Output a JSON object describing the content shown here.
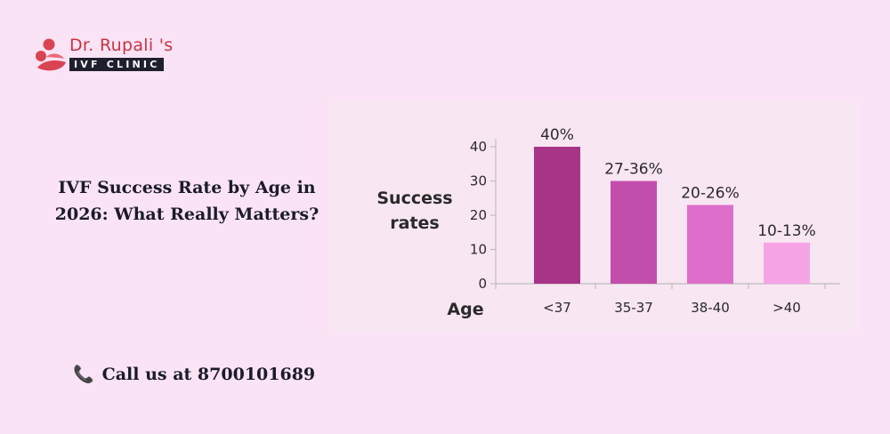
{
  "brand": {
    "name": "Dr. Rupali 's",
    "tagline": "IVF CLINIC",
    "colors": {
      "accent": "#d94452",
      "dark": "#1f1f2e"
    },
    "icon": "person-logo-icon"
  },
  "headline": {
    "line1": "IVF Success Rate by Age in",
    "line2": "2026: What Really Matters?"
  },
  "contact": {
    "icon": "phone-icon",
    "text": "Call us at 8700101689"
  },
  "chart_data": {
    "type": "bar",
    "categories": [
      "<37",
      "35-37",
      "38-40",
      ">40"
    ],
    "values": [
      40,
      30,
      23,
      12
    ],
    "data_labels": [
      "40%",
      "27-36%",
      "20-26%",
      "10-13%"
    ],
    "colors": [
      "#a83488",
      "#c24eab",
      "#dd6fcb",
      "#f7a4e6"
    ],
    "title": "",
    "xlabel": "Age",
    "ylabel_lines": [
      "Success",
      "rates"
    ],
    "ylim": [
      0,
      44
    ],
    "yticks": [
      0,
      10,
      20,
      30,
      40
    ],
    "grid": false,
    "legend": "none"
  }
}
